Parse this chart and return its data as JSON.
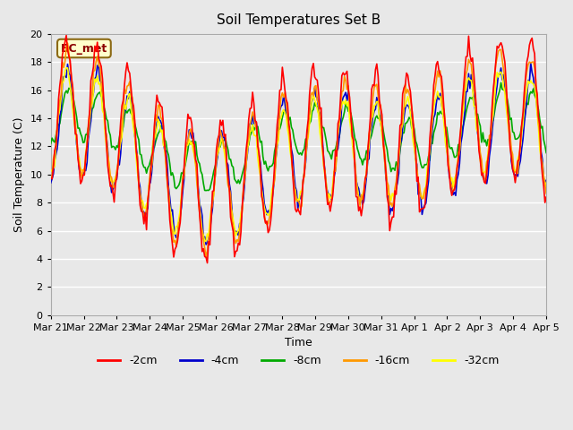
{
  "title": "Soil Temperatures Set B",
  "xlabel": "Time",
  "ylabel": "Soil Temperature (C)",
  "ylim": [
    0,
    20
  ],
  "yticks": [
    0,
    2,
    4,
    6,
    8,
    10,
    12,
    14,
    16,
    18,
    20
  ],
  "background_color": "#e8e8e8",
  "plot_bg_color": "#e8e8e8",
  "grid_color": "#ffffff",
  "annotation_text": "BC_met",
  "annotation_color": "#8b0000",
  "annotation_bg": "#ffffcc",
  "legend_entries": [
    "-2cm",
    "-4cm",
    "-8cm",
    "-16cm",
    "-32cm"
  ],
  "line_colors": [
    "#ff0000",
    "#0000cc",
    "#00aa00",
    "#ff9900",
    "#ffff00"
  ],
  "tick_labels": [
    "Mar 21",
    "Mar 22",
    "Mar 23",
    "Mar 24",
    "Mar 25",
    "Mar 26",
    "Mar 27",
    "Mar 28",
    "Mar 29",
    "Mar 30",
    "Mar 31",
    "Apr 1",
    "Apr 2",
    "Apr 3",
    "Apr 4",
    "Apr 5"
  ]
}
